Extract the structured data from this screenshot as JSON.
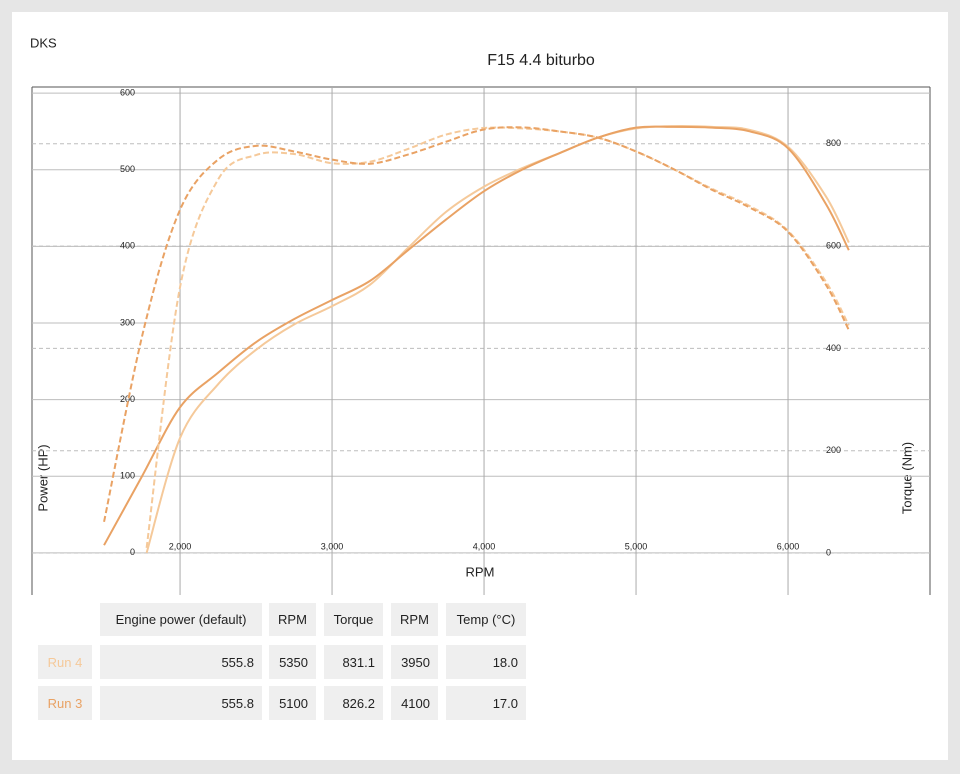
{
  "page_label": "DKS",
  "chart_data": {
    "type": "line",
    "title": "F15 4.4 biturbo",
    "x_label": "RPM",
    "y_label": "Power (HP)",
    "y2_label": "Torque (Nm)",
    "xlim": [
      1026,
      6934
    ],
    "xticks": [
      {
        "value": 2000,
        "label": "2,000"
      },
      {
        "value": 3000,
        "label": "3,000"
      },
      {
        "value": 4000,
        "label": "4,000"
      },
      {
        "value": 5000,
        "label": "5,000"
      },
      {
        "value": 6000,
        "label": "6,000"
      }
    ],
    "ylim": [
      -55,
      608
    ],
    "yticks": [
      0,
      100,
      200,
      300,
      400,
      500,
      600
    ],
    "y2lim": [
      -82,
      911
    ],
    "y2ticks": [
      0,
      200,
      400,
      600,
      800
    ],
    "grid": true,
    "series": [
      {
        "color": "#f5c99a",
        "dashed": false,
        "x": [
          1780,
          2000,
          2250,
          2500,
          2750,
          3000,
          3250,
          3500,
          3750,
          4000,
          4250,
          4500,
          4750,
          5000,
          5250,
          5500,
          5750,
          6000,
          6250,
          6400
        ],
        "values": [
          0,
          150,
          220,
          265,
          298,
          322,
          350,
          398,
          445,
          478,
          502,
          522,
          542,
          554,
          557,
          556,
          552,
          530,
          465,
          405
        ]
      },
      {
        "color": "#e9a264",
        "dashed": false,
        "x": [
          1500,
          1750,
          2000,
          2250,
          2500,
          2750,
          3000,
          3250,
          3500,
          3750,
          4000,
          4250,
          4500,
          4750,
          5000,
          5250,
          5500,
          5750,
          6000,
          6250,
          6400
        ],
        "values": [
          10,
          100,
          190,
          235,
          275,
          305,
          330,
          355,
          395,
          435,
          472,
          500,
          522,
          542,
          555,
          556,
          555,
          550,
          528,
          455,
          395
        ]
      },
      {
        "color": "#f5c99a",
        "dashed": true,
        "axis": "y2",
        "x": [
          1780,
          2000,
          2250,
          2500,
          2750,
          3000,
          3250,
          3500,
          3750,
          4000,
          4250,
          4500,
          4750,
          5000,
          5250,
          5500,
          5750,
          6000,
          6250,
          6400
        ],
        "values": [
          10,
          520,
          730,
          778,
          780,
          762,
          765,
          790,
          818,
          831,
          830,
          824,
          812,
          785,
          750,
          712,
          678,
          630,
          530,
          445
        ]
      },
      {
        "color": "#e9a264",
        "dashed": true,
        "axis": "y2",
        "x": [
          1500,
          1760,
          2000,
          2250,
          2500,
          2750,
          3000,
          3250,
          3500,
          3750,
          4000,
          4250,
          4500,
          4750,
          5000,
          5250,
          5500,
          5750,
          6000,
          6250,
          6400
        ],
        "values": [
          61,
          436,
          671,
          769,
          796,
          785,
          769,
          761,
          779,
          804,
          828,
          832,
          824,
          812,
          785,
          750,
          710,
          675,
          628,
          524,
          436
        ]
      }
    ]
  },
  "table": {
    "header": [
      "Engine power (default)",
      "RPM",
      "Torque",
      "RPM",
      "Temp (°C)"
    ],
    "rows": [
      {
        "label": "Run 4",
        "color": "#f5c99a",
        "cells": [
          "555.8",
          "5350",
          "831.1",
          "3950",
          "18.0"
        ]
      },
      {
        "label": "Run 3",
        "color": "#e9a264",
        "cells": [
          "555.8",
          "5100",
          "826.2",
          "4100",
          "17.0"
        ]
      }
    ]
  }
}
